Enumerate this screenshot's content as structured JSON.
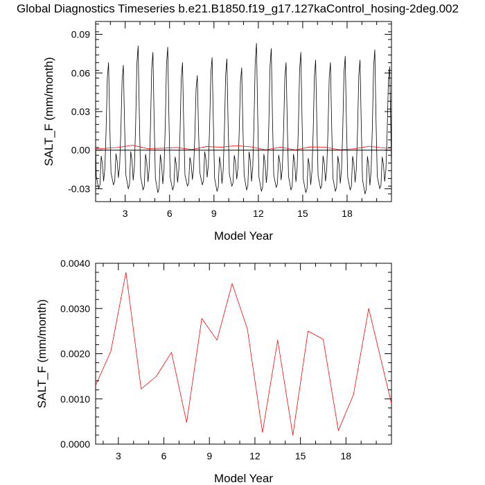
{
  "title": "Global Diagnostics Timeseries b.e21.B1850.f19_g17.127kaControl_hosing-2deg.002",
  "colors": {
    "monthly": "#000000",
    "annual": "#ff0000",
    "axis": "#000000",
    "background": "#ffffff"
  },
  "chart_data": [
    {
      "type": "line",
      "xlabel": "Model Year",
      "ylabel": "SALT_F (mm/month)",
      "xlim": [
        1,
        21
      ],
      "ylim": [
        -0.04,
        0.1
      ],
      "xticks": [
        3,
        6,
        9,
        12,
        15,
        18
      ],
      "xtick_labels": [
        "3",
        "6",
        "9",
        "12",
        "15",
        "18"
      ],
      "yticks": [
        -0.03,
        0.0,
        0.03,
        0.06,
        0.09
      ],
      "ytick_labels": [
        "-0.03",
        "0.00",
        "0.03",
        "0.06",
        "0.09"
      ],
      "zero_line": true,
      "series": [
        {
          "color": "#000000",
          "cycle_peaks": [
            0.068,
            0.066,
            0.081,
            0.076,
            0.08,
            0.068,
            0.058,
            0.072,
            0.071,
            0.064,
            0.083,
            0.079,
            0.068,
            0.076,
            0.07,
            0.068,
            0.073,
            0.07,
            0.078,
            0.065
          ],
          "cycle_troughs": [
            -0.03,
            -0.027,
            -0.03,
            -0.031,
            -0.033,
            -0.031,
            -0.028,
            -0.027,
            -0.032,
            -0.028,
            -0.031,
            -0.032,
            -0.029,
            -0.031,
            -0.033,
            -0.03,
            -0.032,
            -0.031,
            -0.034,
            -0.03
          ]
        },
        {
          "color": "#ff0000",
          "x": [
            1.5,
            2.5,
            3.5,
            4.5,
            5.5,
            6.5,
            7.5,
            8.5,
            9.5,
            10.5,
            11.5,
            12.5,
            13.5,
            14.5,
            15.5,
            16.5,
            17.5,
            18.5,
            19.5,
            20.5
          ],
          "y": [
            0.0013,
            0.00205,
            0.0038,
            0.00122,
            0.0015,
            0.00203,
            0.00048,
            0.00278,
            0.0023,
            0.00355,
            0.00255,
            0.00026,
            0.0023,
            0.0002,
            0.0025,
            0.00232,
            0.0003,
            0.0011,
            0.003,
            0.0016
          ]
        }
      ]
    },
    {
      "type": "line",
      "xlabel": "Model Year",
      "ylabel": "SALT_F (mm/month)",
      "xlim": [
        1.5,
        21
      ],
      "ylim": [
        0.0,
        0.004
      ],
      "xticks": [
        3,
        6,
        9,
        12,
        15,
        18
      ],
      "xtick_labels": [
        "3",
        "6",
        "9",
        "12",
        "15",
        "18"
      ],
      "yticks": [
        0.0,
        0.001,
        0.002,
        0.003,
        0.004
      ],
      "ytick_labels": [
        "0.0000",
        "0.0010",
        "0.0020",
        "0.0030",
        "0.0040"
      ],
      "series": [
        {
          "color": "#ff0000",
          "x": [
            1.5,
            2.5,
            3.5,
            4.5,
            5.5,
            6.5,
            7.5,
            8.5,
            9.5,
            10.5,
            11.5,
            12.5,
            13.5,
            14.5,
            15.5,
            16.5,
            17.5,
            18.5,
            19.5,
            20.5
          ],
          "y": [
            0.0013,
            0.00205,
            0.0038,
            0.00122,
            0.0015,
            0.00203,
            0.00048,
            0.00278,
            0.0023,
            0.00355,
            0.00255,
            0.00026,
            0.0023,
            0.0002,
            0.0025,
            0.00232,
            0.0003,
            0.0011,
            0.003,
            0.0016
          ]
        }
      ]
    }
  ]
}
